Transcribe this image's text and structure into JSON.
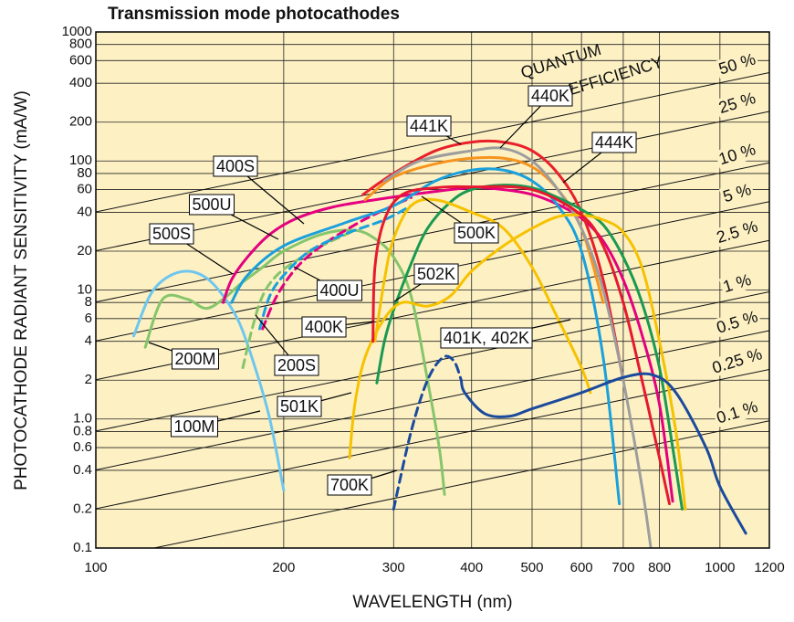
{
  "chart_data": {
    "type": "line",
    "title": "Transmission mode photocathodes",
    "x_label": "WAVELENGTH (nm)",
    "y_label": "PHOTOCATHODE RADIANT SENSITIVITY (mA/W)",
    "log_x": true,
    "log_y": true,
    "grid": true,
    "xlim": [
      100,
      1200
    ],
    "ylim": [
      0.1,
      1000
    ],
    "xticks": [
      100,
      200,
      300,
      400,
      500,
      600,
      700,
      800,
      1000,
      1200
    ],
    "yticks": [
      0.1,
      0.2,
      0.4,
      0.6,
      0.8,
      {
        "value": 1,
        "label": "1.0"
      },
      2,
      4,
      6,
      8,
      10,
      20,
      40,
      60,
      80,
      100,
      200,
      400,
      600,
      800,
      1000
    ],
    "qe_title": [
      "QUANTUM",
      "EFFICIENCY"
    ],
    "qe_lines": [
      {
        "label": "50 %",
        "value": 50
      },
      {
        "label": "25 %",
        "value": 25
      },
      {
        "label": "10 %",
        "value": 10
      },
      {
        "label": "5 %",
        "value": 5
      },
      {
        "label": "2.5 %",
        "value": 2.5
      },
      {
        "label": "1 %",
        "value": 1
      },
      {
        "label": "0.5 %",
        "value": 0.5
      },
      {
        "label": "0.25 %",
        "value": 0.25
      },
      {
        "label": "0.1 %",
        "value": 0.1
      }
    ],
    "series": [
      {
        "name": "100M",
        "color": "#6ec6ee",
        "x": [
          115,
          122,
          130,
          140,
          150,
          160,
          170,
          180,
          190,
          200
        ],
        "values": [
          4.4,
          9,
          12.5,
          14,
          12.5,
          9,
          5.5,
          2.5,
          1,
          0.28
        ]
      },
      {
        "name": "200M",
        "color": "#86c56b",
        "x": [
          120,
          128,
          140,
          150,
          160,
          170,
          185,
          200,
          230,
          260,
          280,
          300,
          320,
          340,
          355,
          362
        ],
        "values": [
          3.6,
          8.5,
          8.5,
          7.2,
          8.5,
          11,
          15,
          20,
          27,
          29,
          25,
          18,
          9,
          2,
          0.6,
          0.26
        ]
      },
      {
        "name": "200S",
        "color": "#86c56b",
        "dashed": true,
        "x": [
          172,
          178,
          185,
          195,
          210,
          230,
          260
        ],
        "values": [
          2.5,
          5,
          9,
          13,
          17,
          22,
          29
        ]
      },
      {
        "name": "500S",
        "color": "#e4007f",
        "x": [
          160,
          165,
          175,
          190,
          210,
          240,
          280,
          350,
          400,
          450,
          500,
          550,
          600,
          650,
          700,
          750,
          800,
          840
        ],
        "values": [
          8,
          12,
          18,
          27,
          36,
          44,
          50,
          58,
          62,
          60,
          55,
          46,
          36,
          24,
          12,
          4.5,
          1.3,
          0.23
        ]
      },
      {
        "name": "400S",
        "color": "#e4007f",
        "dashed": true,
        "x": [
          185,
          195,
          210,
          230,
          260,
          290,
          320
        ],
        "values": [
          5,
          9,
          15,
          22,
          32,
          42,
          52
        ]
      },
      {
        "name": "500U",
        "color": "#1aa0dc",
        "x": [
          165,
          175,
          200,
          250,
          300,
          350,
          400,
          450,
          500,
          550,
          600,
          650,
          690
        ],
        "values": [
          8,
          13,
          22,
          33,
          45,
          70,
          85,
          85,
          70,
          45,
          20,
          3,
          0.22
        ]
      },
      {
        "name": "400U",
        "color": "#1aa0dc",
        "dashed": true,
        "x": [
          183,
          190,
          200,
          220,
          250,
          290,
          320
        ],
        "values": [
          5,
          9,
          13,
          20,
          27,
          35,
          45
        ]
      },
      {
        "name": "441K",
        "color": "#e8202a",
        "x": [
          268,
          300,
          350,
          400,
          450,
          500,
          550,
          600,
          650,
          700
        ],
        "values": [
          55,
          80,
          120,
          140,
          140,
          120,
          80,
          40,
          12,
          2
        ]
      },
      {
        "name": "440K",
        "color": "#f7941d",
        "x": [
          270,
          300,
          350,
          400,
          450,
          500,
          550,
          600,
          650
        ],
        "values": [
          50,
          75,
          95,
          105,
          105,
          90,
          60,
          30,
          8
        ]
      },
      {
        "name": "444K",
        "color": "#9d9d9d",
        "x": [
          290,
          330,
          400,
          450,
          500,
          550,
          600,
          650,
          700,
          750,
          775
        ],
        "values": [
          70,
          100,
          120,
          125,
          100,
          60,
          30,
          10,
          2,
          0.3,
          0.1
        ]
      },
      {
        "name": "500K",
        "color": "#1a9a50",
        "x": [
          282,
          290,
          300,
          320,
          340,
          370,
          400,
          450,
          500,
          550,
          600,
          650,
          700,
          750,
          800,
          840,
          870
        ],
        "values": [
          1.9,
          4,
          7,
          16,
          30,
          48,
          60,
          65,
          62,
          52,
          42,
          32,
          18,
          8,
          2.5,
          0.6,
          0.2
        ]
      },
      {
        "name": "502K",
        "color": "#f6c200",
        "x": [
          280,
          290,
          300,
          320,
          350,
          400,
          450,
          500,
          550,
          600,
          620
        ],
        "values": [
          4,
          12,
          25,
          45,
          50,
          40,
          30,
          15,
          6,
          2.5,
          1.6
        ]
      },
      {
        "name": "501K",
        "color": "#f6c200",
        "x": [
          255,
          260,
          270,
          290,
          310,
          340,
          370,
          400,
          450,
          500,
          550,
          600,
          650,
          700,
          750,
          800,
          850,
          880
        ],
        "values": [
          0.5,
          1.3,
          3,
          6,
          8,
          7.5,
          9,
          14,
          22,
          30,
          37,
          38,
          35,
          28,
          15,
          4,
          0.8,
          0.2
        ]
      },
      {
        "name": "400K",
        "color": "#e5192f",
        "x": [
          278,
          280,
          290,
          310,
          350,
          400,
          500,
          600,
          650,
          700,
          750,
          800,
          830
        ],
        "values": [
          4,
          15,
          35,
          55,
          62,
          63,
          60,
          38,
          22,
          8,
          2,
          0.5,
          0.22
        ]
      },
      {
        "name": "401K, 402K",
        "color": "#1b4a9c",
        "x": [
          385,
          390,
          420,
          460,
          500,
          600,
          700,
          780,
          850,
          950,
          1000,
          1100
        ],
        "values": [
          2,
          1.6,
          1.1,
          1.05,
          1.2,
          1.6,
          2.1,
          2.2,
          1.6,
          0.6,
          0.3,
          0.13
        ]
      },
      {
        "name": "700K",
        "color": "#1b4a9c",
        "dashed": true,
        "x": [
          300,
          320,
          340,
          360,
          375,
          385
        ],
        "values": [
          0.2,
          0.8,
          2,
          3,
          2.8,
          2
        ]
      }
    ]
  }
}
